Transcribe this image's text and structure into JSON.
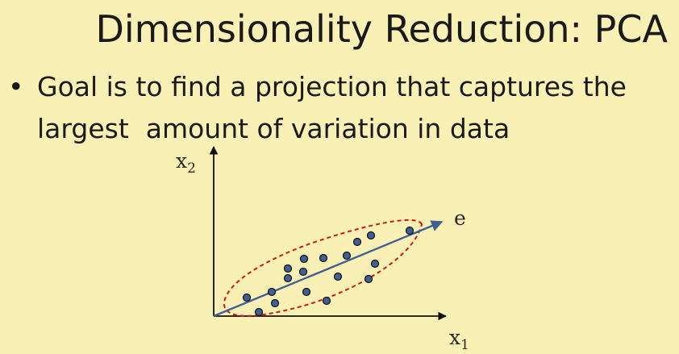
{
  "slide": {
    "title": "Dimensionality Reduction: PCA",
    "bullet_symbol": "•",
    "bullet_line_1": "Goal is to find a projection that captures the",
    "bullet_line_2": "largest  amount of variation in data"
  },
  "figure": {
    "y_axis_label": "x",
    "y_axis_subscript": "2",
    "x_axis_label": "x",
    "x_axis_subscript": "1",
    "direction_label": "e"
  },
  "colors": {
    "background": "#f8f0b4",
    "axis": "#111111",
    "projection_line": "#3f5f95",
    "ellipse": "#d0141a",
    "point_fill": "#3f5f95",
    "point_stroke": "#111111"
  }
}
